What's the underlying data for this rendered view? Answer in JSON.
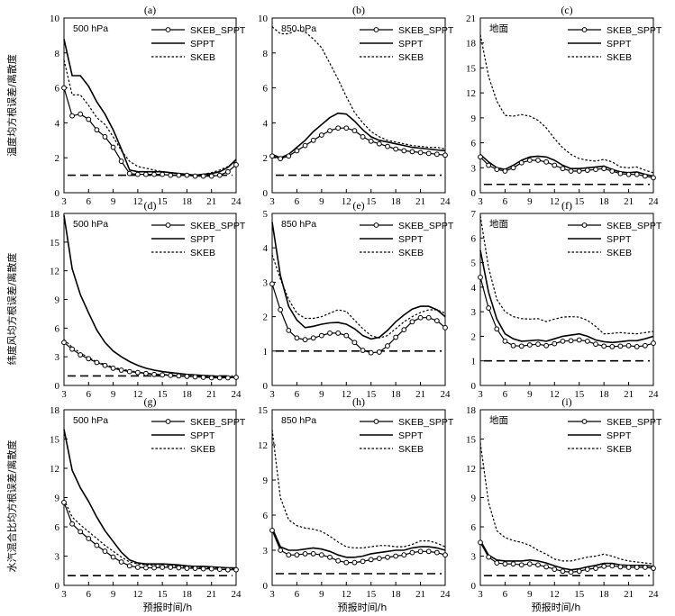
{
  "figure": {
    "row_ylabels": [
      "温度均方根误差/离散度",
      "纬度风均方根误差/离散度",
      "水汽混合比均方根误差/离散度"
    ],
    "xlabel": "预报时间/h"
  },
  "legend": {
    "skeb_sppt": "SKEB_SPPT",
    "sppt": "SPPT",
    "skeb": "SKEB"
  },
  "colors": {
    "line": "#000000",
    "background": "#ffffff"
  },
  "chart_data": [
    {
      "panel": "(a)",
      "annotation": "500 hPa",
      "type": "line",
      "xlim": [
        3,
        24
      ],
      "ylim": [
        0,
        10
      ],
      "yticks": [
        0,
        2,
        4,
        6,
        8,
        10
      ],
      "xticks": [
        3,
        6,
        9,
        12,
        15,
        18,
        21,
        24
      ],
      "x": [
        3,
        4,
        5,
        6,
        7,
        8,
        9,
        10,
        11,
        12,
        13,
        14,
        15,
        16,
        17,
        18,
        19,
        20,
        21,
        22,
        23,
        24
      ],
      "reference": 1,
      "series": [
        {
          "name": "SKEB_SPPT",
          "values": [
            6.0,
            4.4,
            4.5,
            4.2,
            3.6,
            3.2,
            2.6,
            1.8,
            1.1,
            1.05,
            1.05,
            1.05,
            1.05,
            1.0,
            1.0,
            1.0,
            0.95,
            0.95,
            0.95,
            1.0,
            1.2,
            1.6
          ]
        },
        {
          "name": "SPPT",
          "values": [
            8.8,
            6.7,
            6.7,
            6.1,
            5.2,
            4.5,
            3.6,
            2.5,
            1.3,
            1.2,
            1.2,
            1.2,
            1.2,
            1.15,
            1.1,
            1.05,
            1.0,
            1.05,
            1.1,
            1.2,
            1.45,
            1.9
          ]
        },
        {
          "name": "SKEB",
          "values": [
            7.6,
            5.6,
            5.6,
            5.0,
            4.3,
            3.9,
            3.2,
            2.4,
            1.8,
            1.5,
            1.4,
            1.3,
            1.2,
            1.15,
            1.1,
            1.05,
            1.0,
            1.05,
            1.15,
            1.3,
            1.5,
            1.8
          ]
        }
      ]
    },
    {
      "panel": "(b)",
      "annotation": "850 hPa",
      "type": "line",
      "xlim": [
        3,
        24
      ],
      "ylim": [
        0,
        10
      ],
      "yticks": [
        0,
        2,
        4,
        6,
        8,
        10
      ],
      "xticks": [
        3,
        6,
        9,
        12,
        15,
        18,
        21,
        24
      ],
      "x": [
        3,
        4,
        5,
        6,
        7,
        8,
        9,
        10,
        11,
        12,
        13,
        14,
        15,
        16,
        17,
        18,
        19,
        20,
        21,
        22,
        23,
        24
      ],
      "reference": 1,
      "series": [
        {
          "name": "SKEB_SPPT",
          "values": [
            2.1,
            1.95,
            2.1,
            2.4,
            2.7,
            3.0,
            3.3,
            3.55,
            3.7,
            3.7,
            3.55,
            3.2,
            2.95,
            2.8,
            2.65,
            2.5,
            2.4,
            2.35,
            2.3,
            2.25,
            2.2,
            2.15
          ]
        },
        {
          "name": "SPPT",
          "values": [
            2.2,
            2.0,
            2.2,
            2.6,
            3.0,
            3.5,
            3.9,
            4.3,
            4.55,
            4.5,
            4.1,
            3.6,
            3.2,
            3.0,
            2.9,
            2.8,
            2.7,
            2.6,
            2.55,
            2.5,
            2.45,
            2.4
          ]
        },
        {
          "name": "SKEB",
          "values": [
            9.5,
            9.1,
            9.1,
            9.3,
            9.2,
            8.8,
            8.3,
            7.4,
            6.5,
            5.5,
            4.6,
            4.0,
            3.5,
            3.2,
            3.0,
            2.9,
            2.8,
            2.7,
            2.65,
            2.6,
            2.6,
            2.5
          ]
        }
      ]
    },
    {
      "panel": "(c)",
      "annotation": "地面",
      "type": "line",
      "xlim": [
        3,
        24
      ],
      "ylim": [
        0,
        21
      ],
      "yticks": [
        0,
        3,
        6,
        9,
        12,
        15,
        18,
        21
      ],
      "xticks": [
        3,
        6,
        9,
        12,
        15,
        18,
        21,
        24
      ],
      "x": [
        3,
        4,
        5,
        6,
        7,
        8,
        9,
        10,
        11,
        12,
        13,
        14,
        15,
        16,
        17,
        18,
        19,
        20,
        21,
        22,
        23,
        24
      ],
      "reference": 1,
      "series": [
        {
          "name": "SKEB_SPPT",
          "values": [
            4.3,
            3.3,
            2.8,
            2.6,
            3.0,
            3.6,
            3.9,
            3.9,
            3.7,
            3.3,
            2.9,
            2.6,
            2.6,
            2.7,
            2.8,
            2.9,
            2.6,
            2.3,
            2.2,
            2.2,
            2.0,
            1.8
          ]
        },
        {
          "name": "SPPT",
          "values": [
            4.6,
            3.7,
            3.0,
            2.8,
            3.3,
            3.9,
            4.3,
            4.4,
            4.3,
            3.9,
            3.3,
            2.9,
            2.9,
            3.0,
            3.1,
            3.2,
            2.8,
            2.5,
            2.4,
            2.5,
            2.2,
            2.0
          ]
        },
        {
          "name": "SKEB",
          "values": [
            19.0,
            14.0,
            11.0,
            9.3,
            9.2,
            9.4,
            9.2,
            8.7,
            7.8,
            6.5,
            5.4,
            4.6,
            4.1,
            3.9,
            3.8,
            4.0,
            3.7,
            3.1,
            3.0,
            3.1,
            2.7,
            2.4
          ]
        }
      ]
    },
    {
      "panel": "(d)",
      "annotation": "500 hPa",
      "type": "line",
      "xlim": [
        3,
        24
      ],
      "ylim": [
        0,
        18
      ],
      "yticks": [
        0,
        3,
        6,
        9,
        12,
        15,
        18
      ],
      "xticks": [
        3,
        6,
        9,
        12,
        15,
        18,
        21,
        24
      ],
      "x": [
        3,
        4,
        5,
        6,
        7,
        8,
        9,
        10,
        11,
        12,
        13,
        14,
        15,
        16,
        17,
        18,
        19,
        20,
        21,
        22,
        23,
        24
      ],
      "reference": 1,
      "series": [
        {
          "name": "SKEB_SPPT",
          "values": [
            4.5,
            3.8,
            3.2,
            2.8,
            2.4,
            2.1,
            1.8,
            1.6,
            1.45,
            1.35,
            1.25,
            1.15,
            1.1,
            1.05,
            1.0,
            0.95,
            0.9,
            0.85,
            0.8,
            0.8,
            0.8,
            0.85
          ]
        },
        {
          "name": "SPPT",
          "values": [
            17.8,
            12.2,
            9.5,
            7.6,
            5.8,
            4.5,
            3.6,
            3.0,
            2.5,
            2.1,
            1.8,
            1.6,
            1.45,
            1.35,
            1.25,
            1.15,
            1.1,
            1.05,
            1.0,
            0.95,
            0.9,
            0.9
          ]
        },
        {
          "name": "SKEB",
          "values": [
            4.8,
            4.0,
            3.4,
            2.9,
            2.5,
            2.2,
            1.9,
            1.7,
            1.55,
            1.4,
            1.3,
            1.2,
            1.15,
            1.1,
            1.05,
            1.0,
            0.95,
            0.9,
            0.9,
            0.9,
            0.9,
            0.9
          ]
        }
      ]
    },
    {
      "panel": "(e)",
      "annotation": "850 hPa",
      "type": "line",
      "xlim": [
        3,
        24
      ],
      "ylim": [
        0,
        5
      ],
      "yticks": [
        0,
        1,
        2,
        3,
        4,
        5
      ],
      "xticks": [
        3,
        6,
        9,
        12,
        15,
        18,
        21,
        24
      ],
      "x": [
        3,
        4,
        5,
        6,
        7,
        8,
        9,
        10,
        11,
        12,
        13,
        14,
        15,
        16,
        17,
        18,
        19,
        20,
        21,
        22,
        23,
        24
      ],
      "reference": 1,
      "series": [
        {
          "name": "SKEB_SPPT",
          "values": [
            2.95,
            2.2,
            1.6,
            1.38,
            1.33,
            1.38,
            1.45,
            1.52,
            1.52,
            1.45,
            1.25,
            1.02,
            0.95,
            0.97,
            1.15,
            1.4,
            1.62,
            1.85,
            1.97,
            1.97,
            1.88,
            1.68
          ]
        },
        {
          "name": "SPPT",
          "values": [
            4.75,
            3.2,
            2.3,
            1.9,
            1.68,
            1.72,
            1.78,
            1.82,
            1.83,
            1.78,
            1.65,
            1.45,
            1.35,
            1.4,
            1.6,
            1.85,
            2.05,
            2.22,
            2.3,
            2.3,
            2.2,
            2.0
          ]
        },
        {
          "name": "SKEB",
          "values": [
            3.8,
            3.1,
            2.5,
            2.1,
            1.95,
            1.95,
            2.0,
            2.1,
            2.2,
            2.15,
            1.9,
            1.65,
            1.45,
            1.38,
            1.45,
            1.65,
            1.85,
            2.0,
            2.12,
            2.2,
            2.2,
            2.1
          ]
        }
      ]
    },
    {
      "panel": "(f)",
      "annotation": "地面",
      "type": "line",
      "xlim": [
        3,
        24
      ],
      "ylim": [
        0,
        7
      ],
      "yticks": [
        0,
        1,
        2,
        3,
        4,
        5,
        6,
        7
      ],
      "xticks": [
        3,
        6,
        9,
        12,
        15,
        18,
        21,
        24
      ],
      "x": [
        3,
        4,
        5,
        6,
        7,
        8,
        9,
        10,
        11,
        12,
        13,
        14,
        15,
        16,
        17,
        18,
        19,
        20,
        21,
        22,
        23,
        24
      ],
      "reference": 1,
      "series": [
        {
          "name": "SKEB_SPPT",
          "values": [
            4.4,
            3.15,
            2.3,
            1.8,
            1.62,
            1.6,
            1.65,
            1.68,
            1.62,
            1.7,
            1.8,
            1.82,
            1.85,
            1.8,
            1.68,
            1.6,
            1.58,
            1.6,
            1.62,
            1.58,
            1.62,
            1.72
          ]
        },
        {
          "name": "SPPT",
          "values": [
            5.5,
            3.8,
            2.7,
            2.1,
            1.9,
            1.8,
            1.82,
            1.85,
            1.8,
            1.9,
            2.0,
            2.05,
            2.1,
            2.0,
            1.85,
            1.78,
            1.75,
            1.78,
            1.82,
            1.82,
            1.9,
            2.0
          ]
        },
        {
          "name": "SKEB",
          "values": [
            6.9,
            4.8,
            3.5,
            3.0,
            2.8,
            2.72,
            2.7,
            2.72,
            2.6,
            2.7,
            2.78,
            2.8,
            2.78,
            2.65,
            2.4,
            2.1,
            2.12,
            2.15,
            2.12,
            2.1,
            2.15,
            2.2
          ]
        }
      ]
    },
    {
      "panel": "(g)",
      "annotation": "500 hPa",
      "type": "line",
      "xlim": [
        3,
        24
      ],
      "ylim": [
        0,
        18
      ],
      "yticks": [
        0,
        3,
        6,
        9,
        12,
        15,
        18
      ],
      "xticks": [
        3,
        6,
        9,
        12,
        15,
        18,
        21,
        24
      ],
      "x": [
        3,
        4,
        5,
        6,
        7,
        8,
        9,
        10,
        11,
        12,
        13,
        14,
        15,
        16,
        17,
        18,
        19,
        20,
        21,
        22,
        23,
        24
      ],
      "reference": 1,
      "series": [
        {
          "name": "SKEB_SPPT",
          "values": [
            8.5,
            6.3,
            5.5,
            4.8,
            4.1,
            3.5,
            2.9,
            2.4,
            2.0,
            1.85,
            1.8,
            1.8,
            1.85,
            1.85,
            1.8,
            1.75,
            1.75,
            1.7,
            1.7,
            1.65,
            1.6,
            1.6
          ]
        },
        {
          "name": "SPPT",
          "values": [
            16.0,
            11.8,
            10.0,
            8.6,
            7.0,
            5.6,
            4.5,
            3.4,
            2.6,
            2.3,
            2.2,
            2.2,
            2.2,
            2.15,
            2.1,
            2.0,
            1.95,
            1.95,
            1.9,
            1.85,
            1.8,
            1.8
          ]
        },
        {
          "name": "SKEB",
          "values": [
            8.8,
            7.0,
            6.2,
            5.5,
            4.8,
            4.1,
            3.5,
            2.9,
            2.4,
            2.2,
            2.1,
            2.05,
            2.0,
            2.0,
            1.95,
            1.9,
            1.85,
            1.85,
            1.8,
            1.8,
            1.75,
            1.7
          ]
        }
      ]
    },
    {
      "panel": "(h)",
      "annotation": "850 hPa",
      "type": "line",
      "xlim": [
        3,
        24
      ],
      "ylim": [
        0,
        15
      ],
      "yticks": [
        0,
        3,
        6,
        9,
        12,
        15
      ],
      "xticks": [
        3,
        6,
        9,
        12,
        15,
        18,
        21,
        24
      ],
      "x": [
        3,
        4,
        5,
        6,
        7,
        8,
        9,
        10,
        11,
        12,
        13,
        14,
        15,
        16,
        17,
        18,
        19,
        20,
        21,
        22,
        23,
        24
      ],
      "reference": 1,
      "series": [
        {
          "name": "SKEB_SPPT",
          "values": [
            4.7,
            3.0,
            2.6,
            2.6,
            2.7,
            2.7,
            2.6,
            2.4,
            2.1,
            1.95,
            1.95,
            2.05,
            2.2,
            2.3,
            2.4,
            2.5,
            2.6,
            2.8,
            2.9,
            2.9,
            2.8,
            2.6
          ]
        },
        {
          "name": "SPPT",
          "values": [
            4.9,
            3.3,
            3.0,
            3.0,
            3.1,
            3.2,
            3.1,
            2.9,
            2.6,
            2.4,
            2.4,
            2.5,
            2.7,
            2.8,
            2.9,
            3.0,
            3.0,
            3.2,
            3.3,
            3.3,
            3.2,
            3.0
          ]
        },
        {
          "name": "SKEB",
          "values": [
            13.3,
            7.5,
            5.6,
            5.1,
            4.9,
            4.8,
            4.6,
            4.2,
            3.7,
            3.3,
            3.2,
            3.2,
            3.3,
            3.4,
            3.4,
            3.3,
            3.3,
            3.5,
            3.8,
            3.8,
            3.6,
            3.3
          ]
        }
      ]
    },
    {
      "panel": "(i)",
      "annotation": "地面",
      "type": "line",
      "xlim": [
        3,
        24
      ],
      "ylim": [
        0,
        18
      ],
      "yticks": [
        0,
        3,
        6,
        9,
        12,
        15,
        18
      ],
      "xticks": [
        3,
        6,
        9,
        12,
        15,
        18,
        21,
        24
      ],
      "x": [
        3,
        4,
        5,
        6,
        7,
        8,
        9,
        10,
        11,
        12,
        13,
        14,
        15,
        16,
        17,
        18,
        19,
        20,
        21,
        22,
        23,
        24
      ],
      "reference": 1,
      "series": [
        {
          "name": "SKEB_SPPT",
          "values": [
            4.4,
            2.9,
            2.3,
            2.2,
            2.2,
            2.1,
            2.2,
            2.1,
            1.9,
            1.65,
            1.45,
            1.35,
            1.45,
            1.65,
            1.75,
            1.95,
            2.0,
            1.9,
            1.85,
            1.85,
            1.85,
            1.75
          ]
        },
        {
          "name": "SPPT",
          "values": [
            4.6,
            3.1,
            2.6,
            2.5,
            2.5,
            2.5,
            2.6,
            2.5,
            2.3,
            2.0,
            1.75,
            1.6,
            1.7,
            1.9,
            2.05,
            2.25,
            2.25,
            2.1,
            2.05,
            2.05,
            2.05,
            1.95
          ]
        },
        {
          "name": "SKEB",
          "values": [
            14.6,
            8.5,
            5.6,
            4.9,
            4.6,
            4.4,
            4.1,
            3.6,
            3.2,
            2.7,
            2.5,
            2.5,
            2.7,
            2.9,
            3.0,
            3.2,
            3.0,
            2.7,
            2.5,
            2.4,
            2.3,
            2.2
          ]
        }
      ]
    }
  ]
}
